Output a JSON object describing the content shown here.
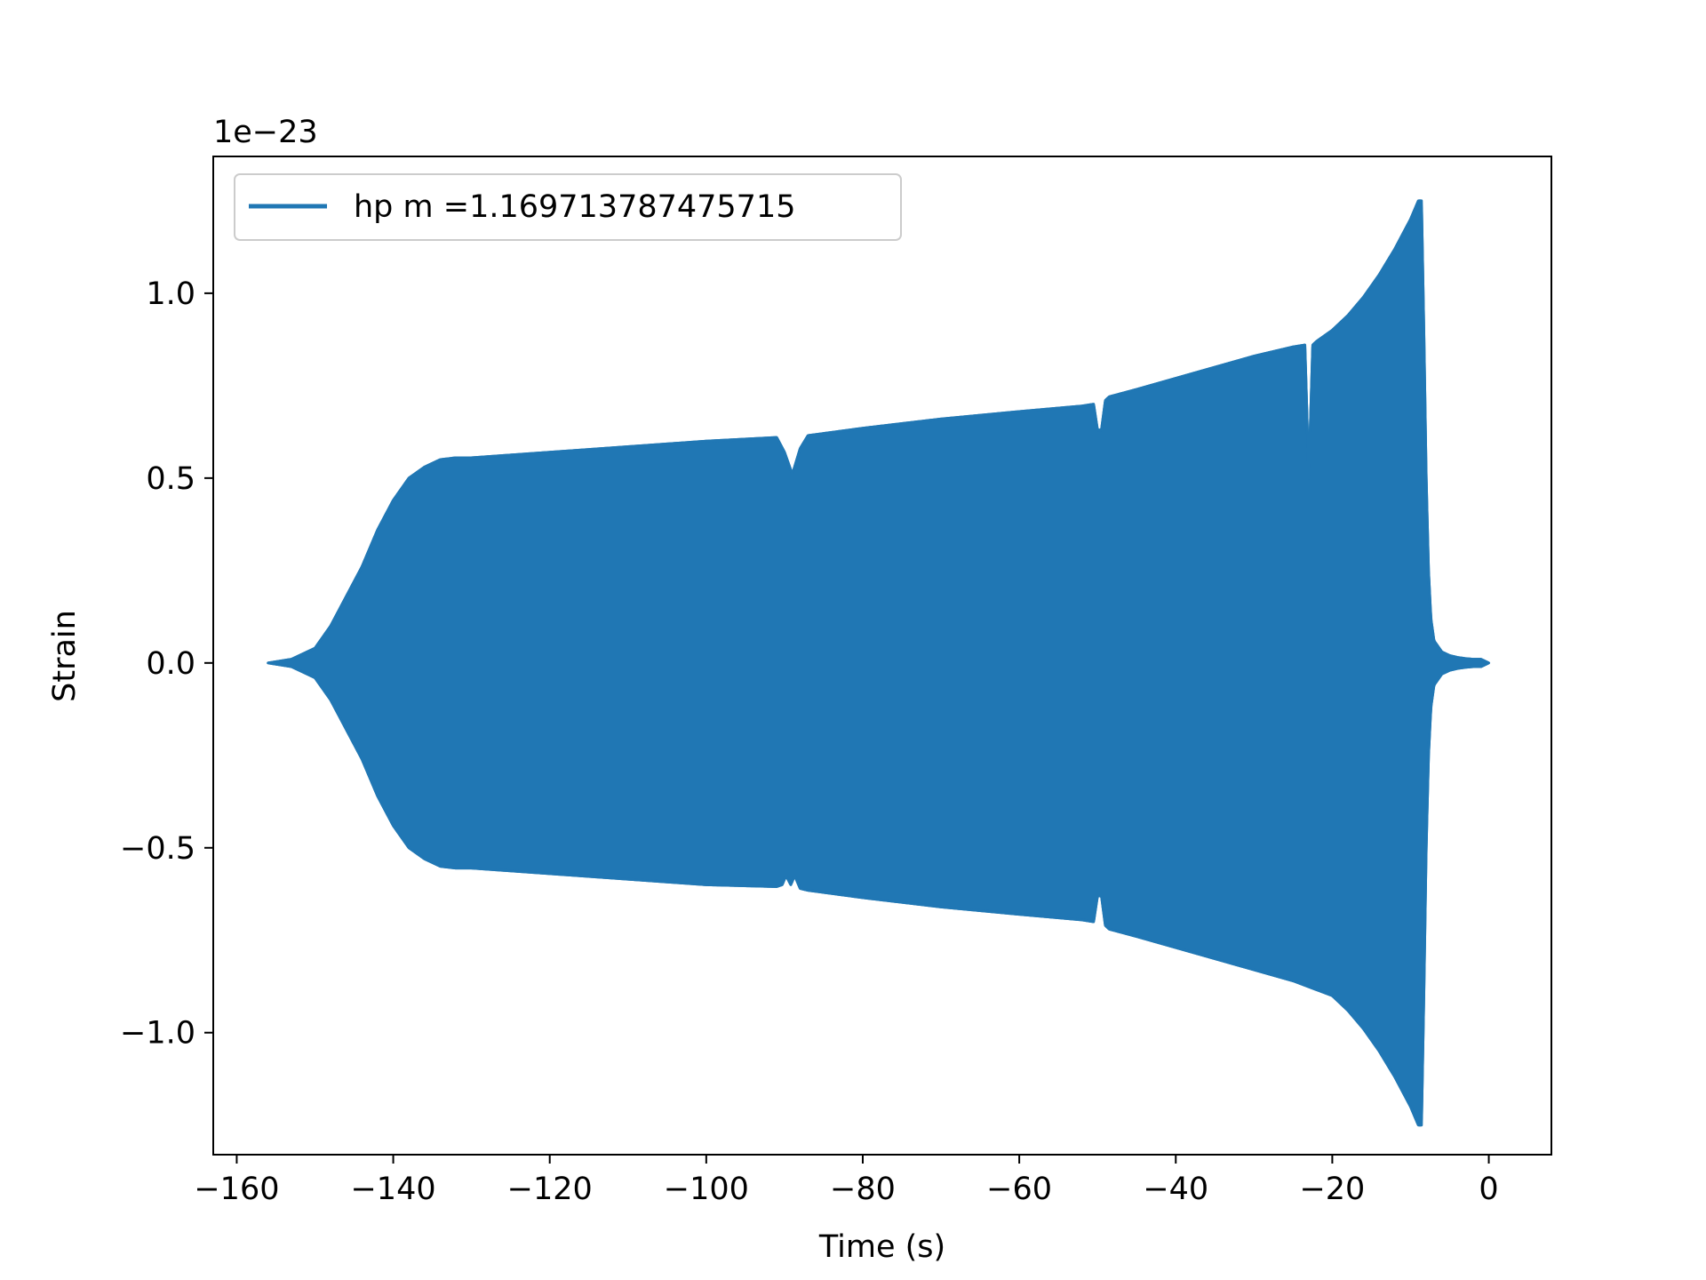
{
  "chart_data": {
    "type": "line",
    "title": "",
    "xlabel": "Time (s)",
    "ylabel": "Strain",
    "y_offset_label": "1e−23",
    "y_scale_factor": 1e-23,
    "xlim": [
      -163,
      8
    ],
    "ylim": [
      -1.33,
      1.37
    ],
    "x_ticks": [
      -160,
      -140,
      -120,
      -100,
      -80,
      -60,
      -40,
      -20,
      0
    ],
    "x_tick_labels": [
      "−160",
      "−140",
      "−120",
      "−100",
      "−80",
      "−60",
      "−40",
      "−20",
      "0"
    ],
    "y_ticks": [
      -1.0,
      -0.5,
      0.0,
      0.5,
      1.0
    ],
    "y_tick_labels": [
      "−1.0",
      "−0.5",
      "0.0",
      "0.5",
      "1.0"
    ],
    "grid": false,
    "legend_position": "upper-left",
    "color": "#2077b4",
    "series": [
      {
        "name": "hp m =1.169713787475715",
        "description_envelope": "dense oscillation filling area between upper and lower envelope",
        "upper_envelope": {
          "x": [
            -156,
            -153,
            -150,
            -148,
            -146,
            -144,
            -142,
            -140,
            -138,
            -136,
            -134,
            -132,
            -130,
            -120,
            -110,
            -100,
            -91,
            -90,
            -89,
            -88,
            -87,
            -80,
            -70,
            -60,
            -52,
            -50.5,
            -50,
            -49.5,
            -49,
            -48.5,
            -45,
            -40,
            -35,
            -30,
            -25,
            -23.5,
            -23,
            -22.5,
            -22,
            -20,
            -18,
            -16,
            -14,
            -12,
            -10,
            -9,
            -8.6,
            -8.3,
            -8,
            -7.7,
            -7.4,
            -7,
            -6,
            -5,
            -4,
            -3,
            -2,
            -1,
            0
          ],
          "y": [
            0.0,
            0.01,
            0.04,
            0.1,
            0.18,
            0.26,
            0.36,
            0.44,
            0.5,
            0.53,
            0.55,
            0.555,
            0.555,
            0.57,
            0.585,
            0.6,
            0.61,
            0.57,
            0.51,
            0.58,
            0.615,
            0.635,
            0.66,
            0.68,
            0.695,
            0.7,
            0.63,
            0.63,
            0.71,
            0.72,
            0.74,
            0.77,
            0.8,
            0.83,
            0.855,
            0.86,
            0.5,
            0.86,
            0.87,
            0.9,
            0.94,
            0.99,
            1.05,
            1.12,
            1.2,
            1.25,
            1.25,
            0.9,
            0.5,
            0.25,
            0.12,
            0.06,
            0.03,
            0.02,
            0.015,
            0.012,
            0.01,
            0.01,
            0.0
          ]
        },
        "lower_envelope": {
          "x": [
            -156,
            -153,
            -150,
            -148,
            -146,
            -144,
            -142,
            -140,
            -138,
            -136,
            -134,
            -132,
            -130,
            -120,
            -110,
            -100,
            -91,
            -90.3,
            -89.8,
            -89.2,
            -88.7,
            -88,
            -87,
            -80,
            -70,
            -60,
            -52,
            -50.5,
            -50,
            -49.5,
            -49,
            -48.5,
            -45,
            -40,
            -35,
            -30,
            -25,
            -20,
            -18,
            -16,
            -14,
            -12,
            -10,
            -9,
            -8.6,
            -8.3,
            -8,
            -7.7,
            -7.4,
            -7,
            -6,
            -5,
            -4,
            -3,
            -2,
            -1,
            0
          ],
          "y": [
            0.0,
            -0.01,
            -0.04,
            -0.1,
            -0.18,
            -0.26,
            -0.36,
            -0.44,
            -0.5,
            -0.53,
            -0.55,
            -0.555,
            -0.555,
            -0.57,
            -0.585,
            -0.6,
            -0.605,
            -0.6,
            -0.575,
            -0.6,
            -0.575,
            -0.61,
            -0.615,
            -0.635,
            -0.66,
            -0.68,
            -0.695,
            -0.7,
            -0.63,
            -0.63,
            -0.71,
            -0.72,
            -0.74,
            -0.77,
            -0.8,
            -0.83,
            -0.86,
            -0.9,
            -0.94,
            -0.99,
            -1.05,
            -1.12,
            -1.2,
            -1.25,
            -1.25,
            -0.9,
            -0.5,
            -0.25,
            -0.12,
            -0.06,
            -0.03,
            -0.02,
            -0.015,
            -0.012,
            -0.01,
            -0.01,
            0.0
          ]
        }
      }
    ]
  }
}
